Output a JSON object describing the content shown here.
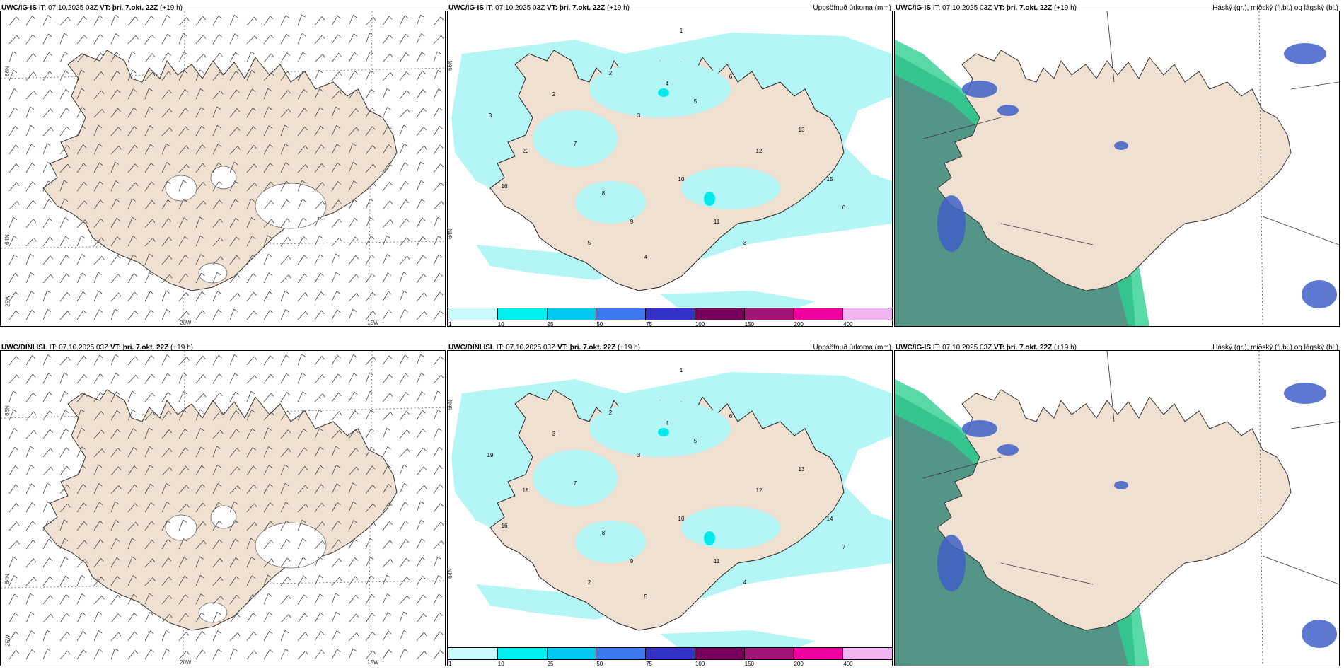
{
  "panels": {
    "wind_top": {
      "model": "UWC/IG-IS",
      "it_label": "IT:",
      "it_value": "07.10.2025 03Z",
      "vt_label": "VT:",
      "vt_value": "þri. 7.okt. 22Z",
      "lead": "(+19 h)"
    },
    "precip_top": {
      "model": "UWC/IG-IS",
      "it_label": "IT:",
      "it_value": "07.10.2025 03Z",
      "vt_label": "VT:",
      "vt_value": "þri. 7.okt. 22Z",
      "lead": "(+19 h)",
      "right_title": "Uppsöfnuð úrkoma (mm)"
    },
    "cloud_top": {
      "model": "UWC/IG-IS",
      "it_label": "IT:",
      "it_value": "07.10.2025 03Z",
      "vt_label": "VT:",
      "vt_value": "þri. 7.okt. 22Z",
      "lead": "(+19 h)",
      "right_title": "Háský (gr.), miðský (fj.bl.) og lágský (bl.)"
    },
    "wind_bottom": {
      "model": "UWC/DINI ISL",
      "it_label": "IT:",
      "it_value": "07.10.2025 03Z",
      "vt_label": "VT:",
      "vt_value": "þri. 7.okt. 22Z",
      "lead": "(+19 h)"
    },
    "precip_bottom": {
      "model": "UWC/DINI ISL",
      "it_label": "IT:",
      "it_value": "07.10.2025 03Z",
      "vt_label": "VT:",
      "vt_value": "þri. 7.okt. 22Z",
      "lead": "(+19 h)",
      "right_title": "Uppsöfnuð úrkoma (mm)"
    },
    "cloud_bottom": {
      "model": "UWC/IG-IS",
      "it_label": "IT:",
      "it_value": "07.10.2025 03Z",
      "vt_label": "VT:",
      "vt_value": "þri. 7.okt. 22Z",
      "lead": "(+19 h)",
      "right_title": "Háský (gr.), miðský (fj.bl.) og lágský (bl.)"
    }
  },
  "grid_labels": {
    "lat_66": "66N",
    "lat_64": "64N",
    "lat_25": "25W",
    "lon_20": "20W",
    "lon_15": "15W",
    "lat_66_right": "66N",
    "lat_64_right": "64N"
  },
  "colorbar": {
    "labels": [
      "1",
      "10",
      "25",
      "50",
      "75",
      "100",
      "150",
      "200",
      "400"
    ],
    "colors": [
      "#c8fafa",
      "#00f0f0",
      "#00c8f0",
      "#3c78f0",
      "#3232c8",
      "#78005a",
      "#a01478",
      "#f000a0",
      "#f0b4f0"
    ]
  },
  "colors": {
    "land": "#efe0d2",
    "precip_light": "#b4f5f5",
    "precip_mid": "#00eaea",
    "cloud_high": "#4a8f7f",
    "cloud_mid": "#4060c8",
    "cloud_green": "#30d090"
  },
  "precip_top_numbers": [
    "1",
    "2",
    "3",
    "4",
    "5",
    "6",
    "7",
    "8",
    "9",
    "10",
    "11",
    "12",
    "13",
    "15",
    "16",
    "20",
    "3",
    "2",
    "5",
    "4",
    "3",
    "6"
  ],
  "precip_bottom_numbers": [
    "1",
    "2",
    "3",
    "4",
    "5",
    "6",
    "7",
    "8",
    "9",
    "10",
    "11",
    "12",
    "13",
    "14",
    "16",
    "18",
    "19",
    "3",
    "2",
    "5",
    "4",
    "7"
  ]
}
